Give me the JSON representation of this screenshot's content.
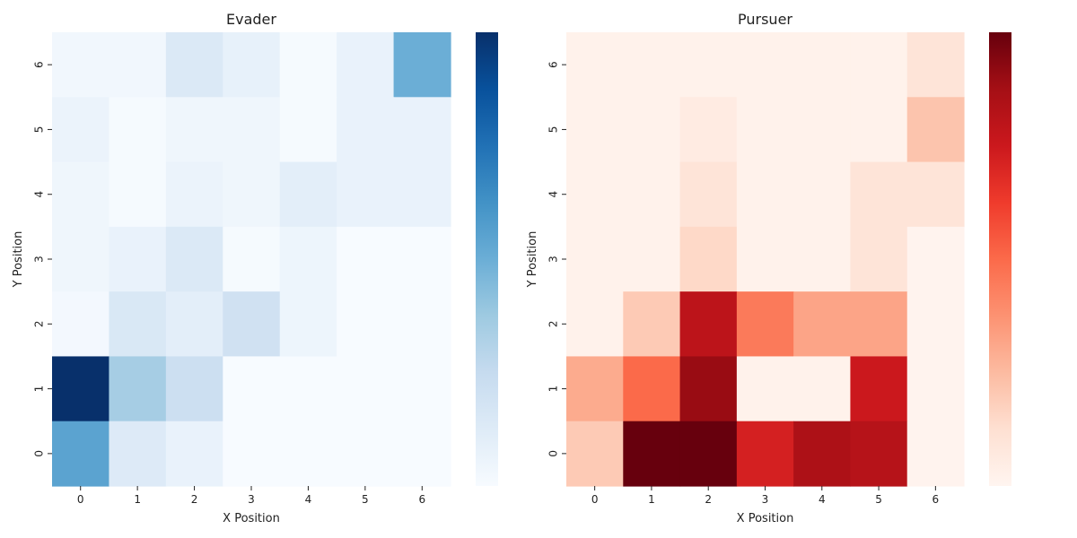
{
  "chart_data": [
    {
      "type": "heatmap",
      "title": "Evader",
      "xlabel": "X Position",
      "ylabel": "Y Position",
      "x_ticks": [
        "0",
        "1",
        "2",
        "3",
        "4",
        "5",
        "6"
      ],
      "y_ticks": [
        "6",
        "5",
        "4",
        "3",
        "2",
        "1",
        "0"
      ],
      "colormap": "Blues",
      "colorbar": true,
      "color_low": "#f7fbff",
      "color_high": "#08306b",
      "values": [
        [
          0.03,
          0.03,
          0.14,
          0.08,
          0.01,
          0.07,
          0.5
        ],
        [
          0.06,
          0.01,
          0.04,
          0.04,
          0.01,
          0.07,
          0.07
        ],
        [
          0.04,
          0.01,
          0.06,
          0.04,
          0.1,
          0.07,
          0.07
        ],
        [
          0.04,
          0.07,
          0.14,
          0.01,
          0.05,
          0.0,
          0.0
        ],
        [
          0.02,
          0.15,
          0.1,
          0.2,
          0.05,
          0.0,
          0.0
        ],
        [
          1.0,
          0.35,
          0.22,
          0.0,
          0.0,
          0.0,
          0.0
        ],
        [
          0.55,
          0.13,
          0.07,
          0.0,
          0.0,
          0.0,
          0.0
        ]
      ]
    },
    {
      "type": "heatmap",
      "title": "Pursuer",
      "xlabel": "X Position",
      "ylabel": "Y Position",
      "x_ticks": [
        "0",
        "1",
        "2",
        "3",
        "4",
        "5",
        "6"
      ],
      "y_ticks": [
        "6",
        "5",
        "4",
        "3",
        "2",
        "1",
        "0"
      ],
      "colormap": "Reds",
      "colorbar": true,
      "color_low": "#fff5f0",
      "color_high": "#67000d",
      "values": [
        [
          0.02,
          0.02,
          0.02,
          0.02,
          0.02,
          0.02,
          0.1
        ],
        [
          0.02,
          0.02,
          0.06,
          0.02,
          0.02,
          0.02,
          0.22
        ],
        [
          0.02,
          0.02,
          0.1,
          0.02,
          0.02,
          0.1,
          0.1
        ],
        [
          0.02,
          0.02,
          0.15,
          0.02,
          0.02,
          0.1,
          0.01
        ],
        [
          0.02,
          0.2,
          0.8,
          0.45,
          0.32,
          0.32,
          0.01
        ],
        [
          0.3,
          0.5,
          0.9,
          0.02,
          0.02,
          0.75,
          0.01
        ],
        [
          0.2,
          1.0,
          1.0,
          0.72,
          0.85,
          0.82,
          0.01
        ]
      ]
    }
  ]
}
